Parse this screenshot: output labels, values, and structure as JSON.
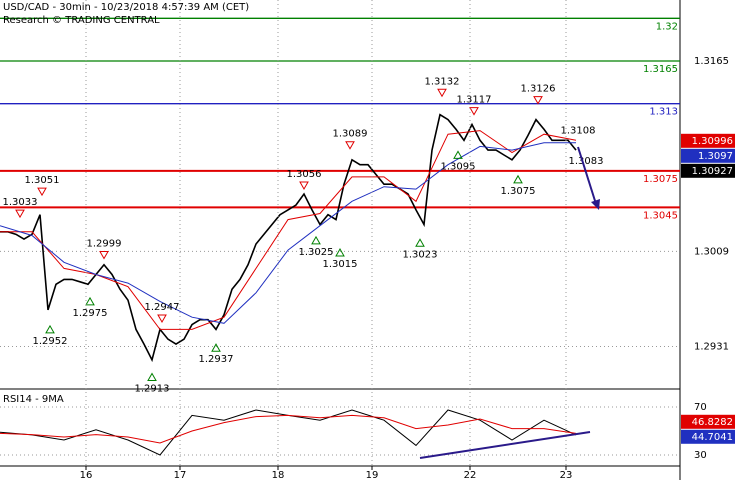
{
  "chart_data": [
    {
      "type": "line",
      "title": "USD/CAD - 30min - 10/23/2018 4:57:39 AM (CET)",
      "subtitle": "Research © TRADING CENTRAL",
      "xlim": [
        0,
        340
      ],
      "xticks": [
        {
          "value": 43,
          "label": "16"
        },
        {
          "value": 90,
          "label": "17"
        },
        {
          "value": 139,
          "label": "18"
        },
        {
          "value": 186,
          "label": "19"
        },
        {
          "value": 235,
          "label": "22"
        },
        {
          "value": 283,
          "label": "23"
        }
      ],
      "ylim": [
        1.2897,
        1.3215
      ],
      "yticks": [
        1.2931,
        1.3009,
        1.3165
      ],
      "grid": true,
      "x": [
        0,
        4,
        8,
        12,
        16,
        20,
        24,
        28,
        32,
        36,
        40,
        44,
        48,
        52,
        56,
        60,
        64,
        68,
        72,
        76,
        80,
        84,
        88,
        92,
        96,
        100,
        104,
        108,
        112,
        116,
        120,
        124,
        128,
        132,
        136,
        140,
        144,
        148,
        152,
        156,
        160,
        164,
        168,
        172,
        176,
        180,
        184,
        188,
        192,
        196,
        200,
        204,
        208,
        212,
        216,
        220,
        224,
        228,
        232,
        236,
        240,
        244,
        248,
        252,
        256,
        260,
        264,
        268,
        272,
        276,
        280,
        284,
        288
      ],
      "series": [
        {
          "color": "#000000",
          "values": [
            1.3025,
            1.3025,
            1.3023,
            1.3019,
            1.3023,
            1.3039,
            1.2961,
            1.2982,
            1.2986,
            1.2986,
            1.2984,
            1.2982,
            1.299,
            1.2998,
            1.299,
            1.2978,
            1.2969,
            1.2945,
            1.2933,
            1.292,
            1.2945,
            1.2937,
            1.2933,
            1.2937,
            1.2949,
            1.2953,
            1.2953,
            1.2945,
            1.2957,
            1.2978,
            1.2986,
            1.2998,
            1.3015,
            1.3023,
            1.3031,
            1.3039,
            1.3043,
            1.3047,
            1.3056,
            1.3043,
            1.3031,
            1.3039,
            1.3035,
            1.3064,
            1.3084,
            1.308,
            1.308,
            1.3072,
            1.3064,
            1.3064,
            1.306,
            1.3056,
            1.3043,
            1.3031,
            1.3092,
            1.3121,
            1.3117,
            1.3109,
            1.31,
            1.3113,
            1.31,
            1.3092,
            1.3092,
            1.3088,
            1.3084,
            1.3092,
            1.3104,
            1.3117,
            1.3109,
            1.31,
            1.31,
            1.31,
            1.3092
          ]
        },
        {
          "color": "#e00000",
          "x": [
            0,
            16,
            32,
            48,
            64,
            80,
            96,
            112,
            128,
            144,
            160,
            176,
            192,
            208,
            224,
            240,
            256,
            272,
            288
          ],
          "values": [
            1.3025,
            1.3025,
            1.2995,
            1.299,
            1.298,
            1.2945,
            1.2945,
            1.2955,
            1.2995,
            1.3035,
            1.304,
            1.307,
            1.307,
            1.305,
            1.3105,
            1.3108,
            1.309,
            1.3105,
            1.31
          ]
        },
        {
          "color": "#2030c0",
          "x": [
            0,
            16,
            32,
            48,
            64,
            80,
            96,
            112,
            128,
            144,
            160,
            176,
            192,
            208,
            224,
            240,
            256,
            272,
            288
          ],
          "values": [
            1.303,
            1.3022,
            1.3,
            1.299,
            1.2983,
            1.2968,
            1.2955,
            1.295,
            1.2975,
            1.301,
            1.303,
            1.305,
            1.3062,
            1.306,
            1.308,
            1.3095,
            1.3092,
            1.3098,
            1.3098
          ]
        }
      ],
      "levels": [
        {
          "value": 1.32,
          "color": "#008000"
        },
        {
          "value": 1.3165,
          "color": "#008000"
        },
        {
          "value": 1.313,
          "color": "#2020c0"
        },
        {
          "value": 1.3075,
          "color": "#e00000"
        },
        {
          "value": 1.3045,
          "color": "#e00000"
        }
      ],
      "annotations": [
        {
          "x": 10,
          "y": 1.3033,
          "kind": "high"
        },
        {
          "x": 21,
          "y": 1.3051,
          "kind": "high"
        },
        {
          "x": 25,
          "y": 1.2952,
          "kind": "low"
        },
        {
          "x": 45,
          "y": 1.2975,
          "kind": "low"
        },
        {
          "x": 52,
          "y": 1.2999,
          "kind": "high"
        },
        {
          "x": 76,
          "y": 1.2913,
          "kind": "low"
        },
        {
          "x": 81,
          "y": 1.2947,
          "kind": "high"
        },
        {
          "x": 108,
          "y": 1.2937,
          "kind": "low"
        },
        {
          "x": 152,
          "y": 1.3056,
          "kind": "high"
        },
        {
          "x": 158,
          "y": 1.3025,
          "kind": "low"
        },
        {
          "x": 170,
          "y": 1.3015,
          "kind": "low"
        },
        {
          "x": 175,
          "y": 1.3089,
          "kind": "high"
        },
        {
          "x": 210,
          "y": 1.3023,
          "kind": "low"
        },
        {
          "x": 221,
          "y": 1.3132,
          "kind": "high"
        },
        {
          "x": 229,
          "y": 1.3095,
          "kind": "low"
        },
        {
          "x": 237,
          "y": 1.3117,
          "kind": "high"
        },
        {
          "x": 259,
          "y": 1.3075,
          "kind": "low"
        },
        {
          "x": 269,
          "y": 1.3126,
          "kind": "high"
        },
        {
          "x": 289,
          "y": 1.3108,
          "kind": "label"
        },
        {
          "x": 293,
          "y": 1.3083,
          "kind": "label"
        }
      ],
      "price_boxes": [
        {
          "value": 1.30996,
          "color": "#e00000"
        },
        {
          "value": 1.3097,
          "color": "#2030c0"
        },
        {
          "value": 1.30927,
          "color": "#000000"
        }
      ]
    },
    {
      "type": "line",
      "title": "RSI14 - 9MA",
      "xlim": [
        0,
        340
      ],
      "ylim": [
        20.8,
        82.5
      ],
      "yticks": [
        30,
        70
      ],
      "x": [
        0,
        16,
        32,
        48,
        64,
        80,
        96,
        112,
        128,
        144,
        160,
        176,
        192,
        208,
        224,
        240,
        256,
        272,
        288
      ],
      "series": [
        {
          "color": "#000000",
          "values": [
            49,
            46.7,
            42.5,
            51,
            42.5,
            30,
            63,
            59,
            67.5,
            63,
            59,
            67.5,
            59,
            38,
            67.5,
            59,
            42.5,
            59,
            46.7
          ]
        },
        {
          "color": "#e00000",
          "values": [
            48,
            47,
            45,
            47,
            45,
            40,
            50,
            57,
            62,
            63,
            61,
            63,
            61,
            52,
            55,
            60,
            52,
            52,
            48
          ]
        }
      ],
      "price_boxes": [
        {
          "value": 46.8282,
          "color": "#e00000"
        },
        {
          "value": 44.7041,
          "color": "#2030c0"
        }
      ]
    }
  ]
}
